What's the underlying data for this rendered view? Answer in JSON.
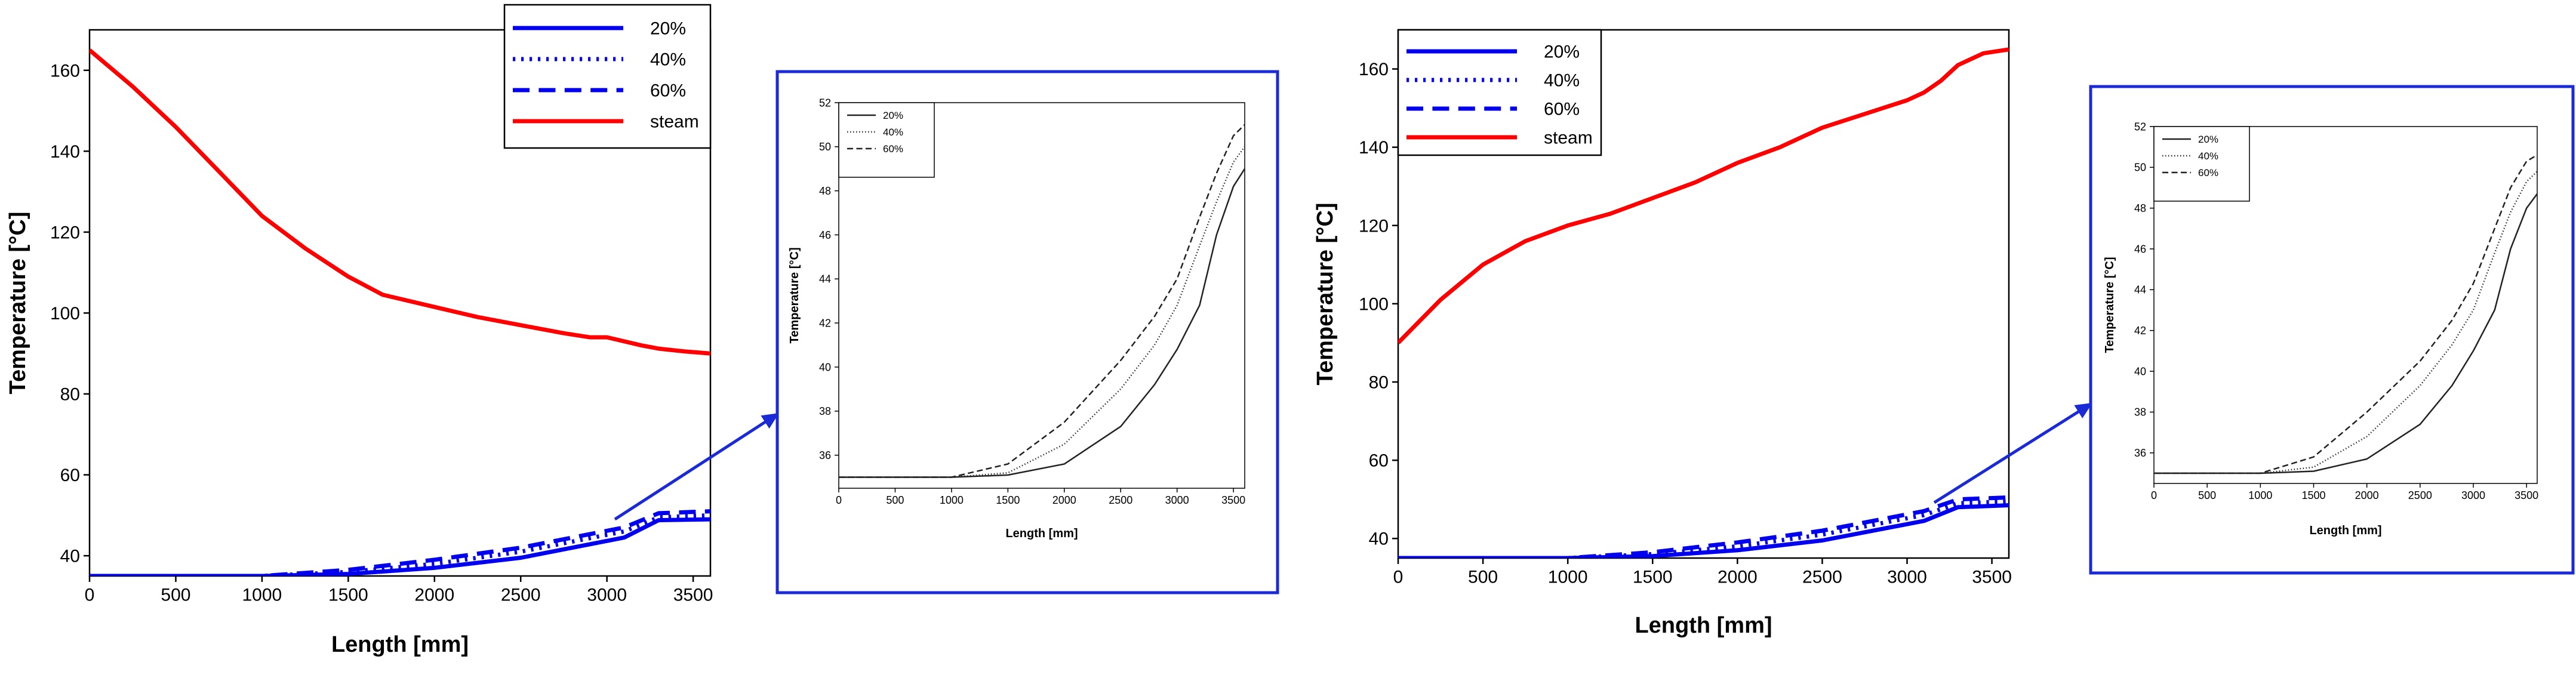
{
  "colors": {
    "steam": "#ff0000",
    "coolant": "#0000ee",
    "inset_frame": "#1a2bd6",
    "inset_line": "#222222",
    "arrow": "#1a2bd6"
  },
  "chart_data": [
    {
      "id": "main-left",
      "type": "line",
      "xlabel": "Length [mm]",
      "ylabel": "Temperature [°C]",
      "xlim": [
        0,
        3600
      ],
      "ylim": [
        35,
        170
      ],
      "xticks": [
        "0",
        "500",
        "1000",
        "1500",
        "2000",
        "2500",
        "3000",
        "3500"
      ],
      "yticks": [
        "40",
        "60",
        "80",
        "100",
        "120",
        "140",
        "160"
      ],
      "legend": [
        "20%",
        "40%",
        "60%",
        "steam"
      ],
      "series": [
        {
          "name": "20%",
          "style": "solid",
          "x": [
            0,
            500,
            1000,
            1500,
            2000,
            2500,
            2800,
            3100,
            3300,
            3600
          ],
          "y": [
            35,
            35,
            35,
            35.5,
            37,
            39.5,
            42,
            44.5,
            48.8,
            49
          ]
        },
        {
          "name": "40%",
          "style": "dotted",
          "x": [
            0,
            500,
            1000,
            1500,
            2000,
            2500,
            2800,
            3100,
            3300,
            3600
          ],
          "y": [
            35,
            35,
            35,
            36,
            38,
            41,
            43.5,
            46,
            49.5,
            50
          ]
        },
        {
          "name": "60%",
          "style": "dashed",
          "x": [
            0,
            500,
            1000,
            1500,
            2000,
            2500,
            2800,
            3100,
            3300,
            3600
          ],
          "y": [
            35,
            35,
            35,
            36.5,
            39,
            42,
            44.5,
            47,
            50.5,
            51
          ]
        },
        {
          "name": "steam",
          "style": "solid",
          "x": [
            0,
            250,
            500,
            750,
            1000,
            1250,
            1500,
            1700,
            2000,
            2250,
            2500,
            2750,
            2900,
            3000,
            3200,
            3300,
            3450,
            3600
          ],
          "y": [
            165,
            156,
            146,
            135,
            124,
            116,
            109,
            104.5,
            101.5,
            99,
            97,
            95,
            94,
            94,
            92,
            91.2,
            90.5,
            90
          ]
        }
      ]
    },
    {
      "id": "inset-left",
      "type": "line",
      "xlabel": "Length [mm]",
      "ylabel": "Temperature [°C]",
      "xlim": [
        0,
        3600
      ],
      "ylim": [
        34.5,
        52
      ],
      "xticks": [
        "0",
        "500",
        "1000",
        "1500",
        "2000",
        "2500",
        "3000",
        "3500"
      ],
      "yticks": [
        "36",
        "38",
        "40",
        "42",
        "44",
        "46",
        "48",
        "50",
        "52"
      ],
      "legend": [
        "20%",
        "40%",
        "60%"
      ],
      "series": [
        {
          "name": "20%",
          "style": "solid",
          "x": [
            0,
            600,
            1000,
            1500,
            2000,
            2500,
            2800,
            3000,
            3200,
            3350,
            3500,
            3600
          ],
          "y": [
            35,
            35,
            35,
            35.1,
            35.6,
            37.3,
            39.2,
            40.8,
            42.8,
            46,
            48.2,
            49
          ]
        },
        {
          "name": "40%",
          "style": "dotted",
          "x": [
            0,
            600,
            1000,
            1500,
            2000,
            2500,
            2800,
            3000,
            3200,
            3350,
            3500,
            3600
          ],
          "y": [
            35,
            35,
            35,
            35.2,
            36.5,
            39,
            41,
            42.8,
            45.5,
            47.5,
            49.3,
            50
          ]
        },
        {
          "name": "60%",
          "style": "dashed",
          "x": [
            0,
            600,
            1000,
            1500,
            2000,
            2500,
            2800,
            3000,
            3200,
            3350,
            3500,
            3600
          ],
          "y": [
            35,
            35,
            35,
            35.6,
            37.5,
            40.3,
            42.3,
            44,
            46.8,
            48.8,
            50.5,
            51
          ]
        }
      ]
    },
    {
      "id": "main-right",
      "type": "line",
      "xlabel": "Length [mm]",
      "ylabel": "Temperature [°C]",
      "xlim": [
        0,
        3600
      ],
      "ylim": [
        35,
        170
      ],
      "xticks": [
        "0",
        "500",
        "1000",
        "1500",
        "2000",
        "2500",
        "3000",
        "3500"
      ],
      "yticks": [
        "40",
        "60",
        "80",
        "100",
        "120",
        "140",
        "160"
      ],
      "legend": [
        "20%",
        "40%",
        "60%",
        "steam"
      ],
      "series": [
        {
          "name": "20%",
          "style": "solid",
          "x": [
            0,
            500,
            1000,
            1500,
            2000,
            2500,
            2800,
            3100,
            3300,
            3600
          ],
          "y": [
            35,
            35,
            35,
            35.5,
            37,
            39.5,
            42,
            44.5,
            48,
            48.5
          ]
        },
        {
          "name": "40%",
          "style": "dotted",
          "x": [
            0,
            500,
            1000,
            1500,
            2000,
            2500,
            2800,
            3100,
            3300,
            3600
          ],
          "y": [
            35,
            35,
            35,
            36,
            38,
            41,
            43.5,
            46,
            49,
            49.5
          ]
        },
        {
          "name": "60%",
          "style": "dashed",
          "x": [
            0,
            500,
            1000,
            1500,
            2000,
            2500,
            2800,
            3100,
            3300,
            3600
          ],
          "y": [
            35,
            35,
            35,
            36.5,
            39,
            42,
            44.5,
            47,
            50,
            50.5
          ]
        },
        {
          "name": "steam",
          "style": "solid",
          "x": [
            0,
            250,
            500,
            750,
            1000,
            1250,
            1500,
            1750,
            2000,
            2250,
            2500,
            2750,
            3000,
            3100,
            3200,
            3300,
            3450,
            3600
          ],
          "y": [
            90,
            101,
            110,
            116,
            120,
            123,
            127,
            131,
            136,
            140,
            145,
            148.5,
            152,
            154,
            157,
            161,
            164,
            165
          ]
        }
      ]
    },
    {
      "id": "inset-right",
      "type": "line",
      "xlabel": "Length [mm]",
      "ylabel": "Temperature [°C]",
      "xlim": [
        0,
        3600
      ],
      "ylim": [
        34.5,
        52
      ],
      "xticks": [
        "0",
        "500",
        "1000",
        "1500",
        "2000",
        "2500",
        "3000",
        "3500"
      ],
      "yticks": [
        "36",
        "38",
        "40",
        "42",
        "44",
        "46",
        "48",
        "50",
        "52"
      ],
      "legend": [
        "20%",
        "40%",
        "60%"
      ],
      "series": [
        {
          "name": "20%",
          "style": "solid",
          "x": [
            0,
            600,
            1000,
            1500,
            2000,
            2500,
            2800,
            3000,
            3200,
            3350,
            3500,
            3600
          ],
          "y": [
            35,
            35,
            35,
            35.1,
            35.7,
            37.4,
            39.3,
            41,
            43,
            46,
            48,
            48.7
          ]
        },
        {
          "name": "40%",
          "style": "dotted",
          "x": [
            0,
            600,
            1000,
            1500,
            2000,
            2500,
            2800,
            3000,
            3200,
            3350,
            3500,
            3600
          ],
          "y": [
            35,
            35,
            35,
            35.3,
            36.8,
            39.3,
            41.3,
            43,
            45.8,
            47.8,
            49.3,
            49.8
          ]
        },
        {
          "name": "60%",
          "style": "dashed",
          "x": [
            0,
            600,
            1000,
            1500,
            2000,
            2500,
            2800,
            3000,
            3200,
            3350,
            3500,
            3600
          ],
          "y": [
            35,
            35,
            35,
            35.8,
            38,
            40.5,
            42.5,
            44.3,
            47,
            49,
            50.3,
            50.6
          ]
        }
      ]
    }
  ]
}
